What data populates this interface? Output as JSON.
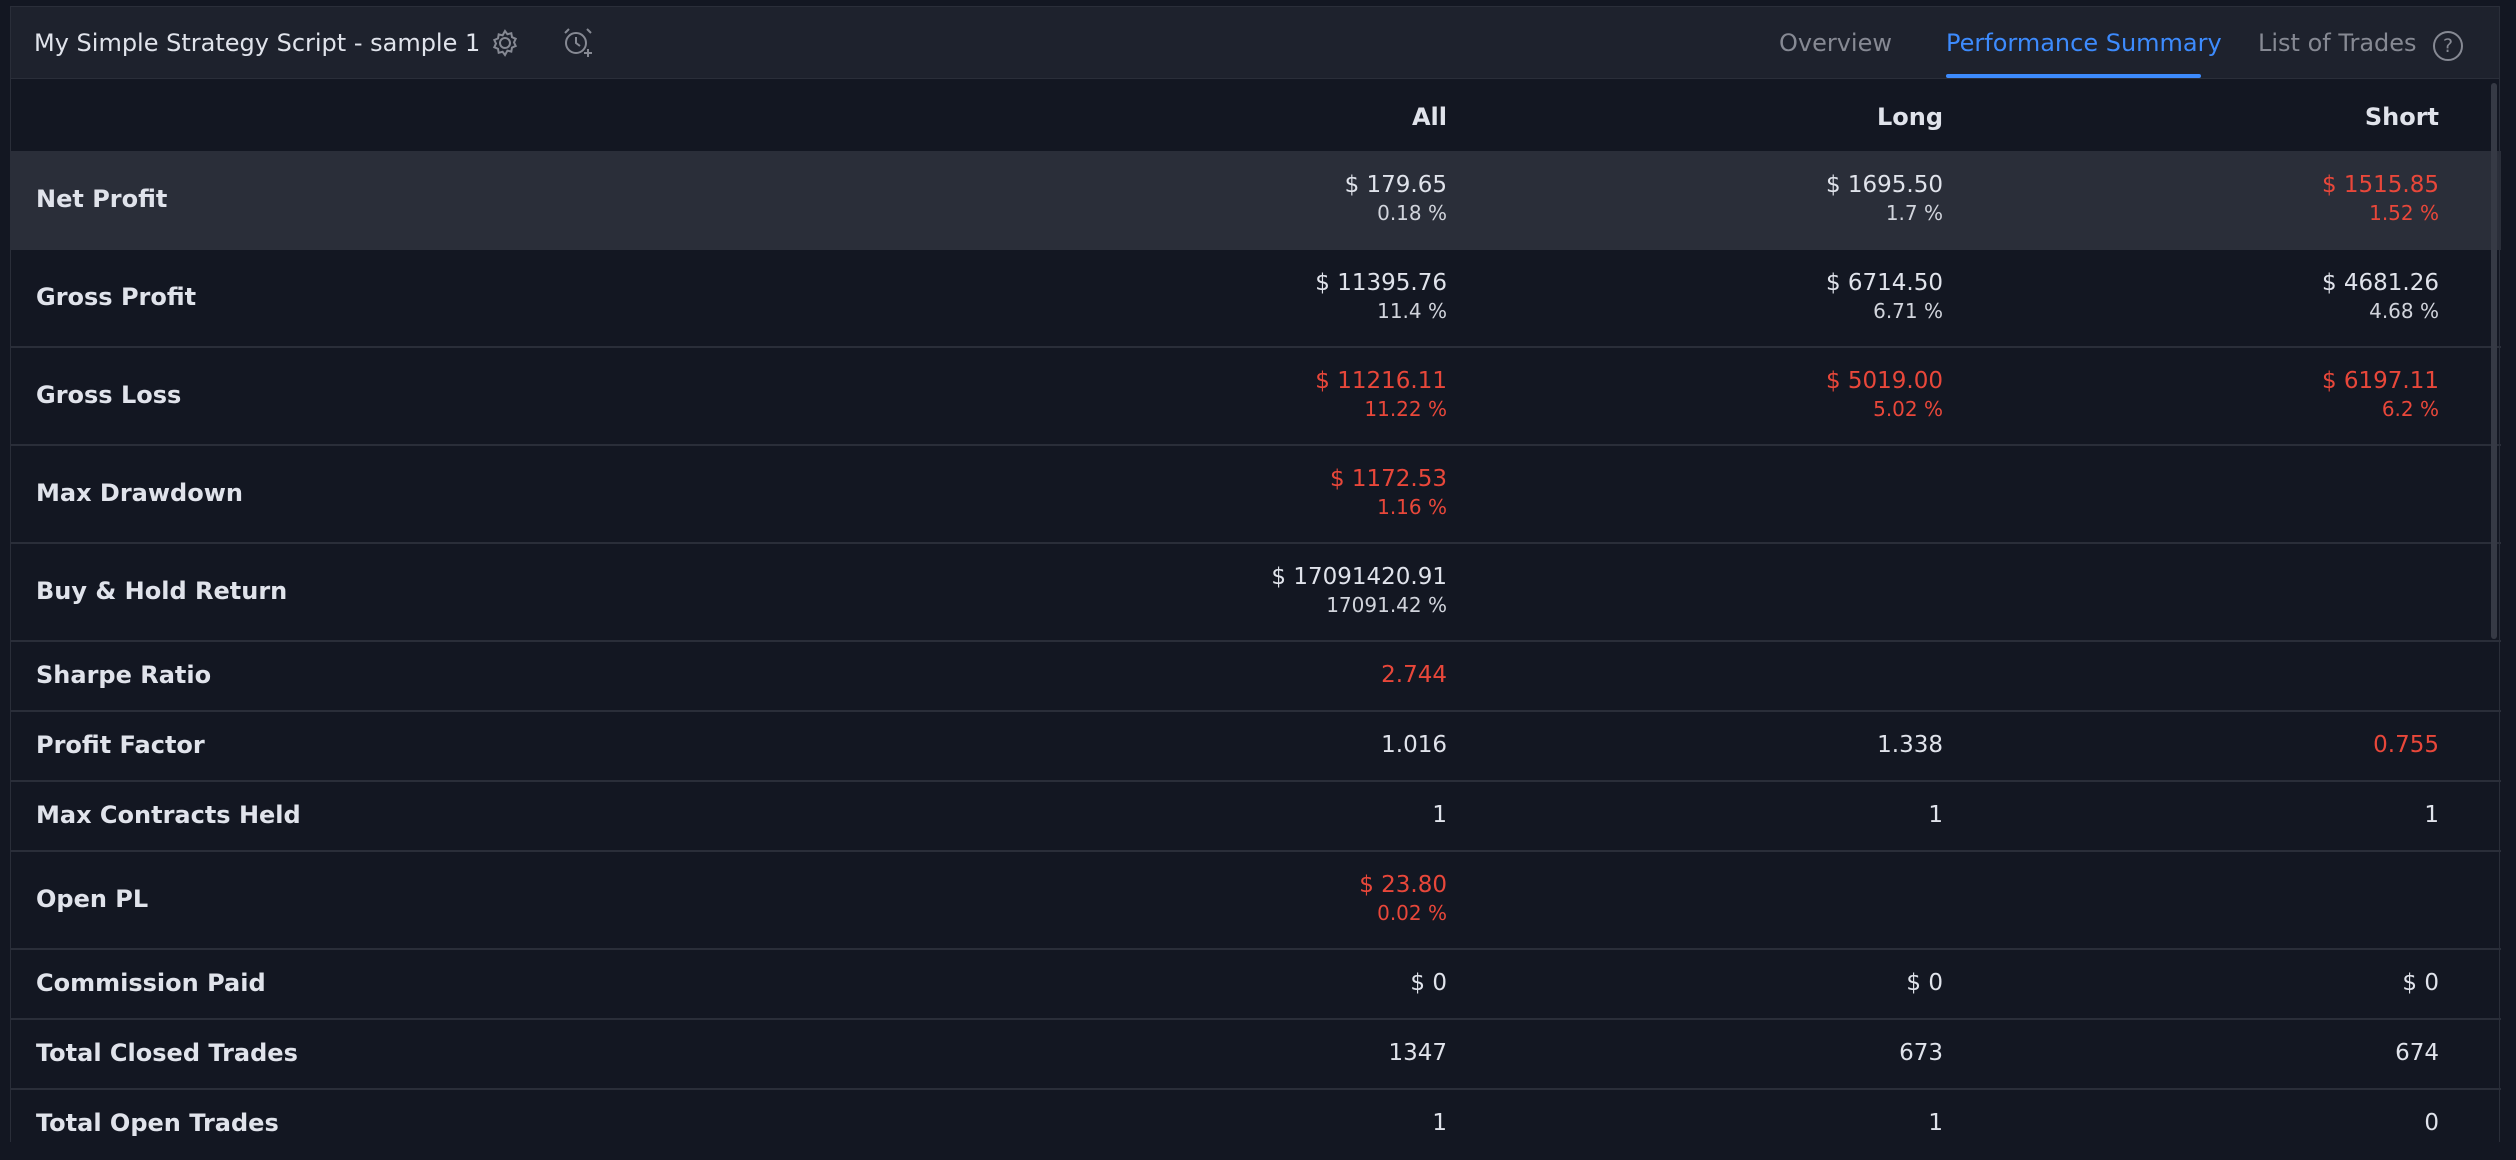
{
  "header": {
    "title": "My Simple Strategy Script - sample 1",
    "tabs": [
      "Overview",
      "Performance Summary",
      "List of Trades"
    ],
    "active_tab": "Performance Summary",
    "help_label": "?"
  },
  "columns": {
    "all": "All",
    "long": "Long",
    "short": "Short"
  },
  "rows": [
    {
      "label": "Net Profit",
      "all": {
        "v1": "$ 179.65",
        "v2": "0.18 %"
      },
      "long": {
        "v1": "$ 1695.50",
        "v2": "1.7 %"
      },
      "short": {
        "v1": "$ 1515.85",
        "v2": "1.52 %"
      }
    },
    {
      "label": "Gross Profit",
      "all": {
        "v1": "$ 11395.76",
        "v2": "11.4 %"
      },
      "long": {
        "v1": "$ 6714.50",
        "v2": "6.71 %"
      },
      "short": {
        "v1": "$ 4681.26",
        "v2": "4.68 %"
      }
    },
    {
      "label": "Gross Loss",
      "all": {
        "v1": "$ 11216.11",
        "v2": "11.22 %"
      },
      "long": {
        "v1": "$ 5019.00",
        "v2": "5.02 %"
      },
      "short": {
        "v1": "$ 6197.11",
        "v2": "6.2 %"
      }
    },
    {
      "label": "Max Drawdown",
      "all": {
        "v1": "$ 1172.53",
        "v2": "1.16 %"
      }
    },
    {
      "label": "Buy & Hold Return",
      "all": {
        "v1": "$ 17091420.91",
        "v2": "17091.42 %"
      }
    },
    {
      "label": "Sharpe Ratio",
      "all": {
        "v1": "2.744"
      }
    },
    {
      "label": "Profit Factor",
      "all": {
        "v1": "1.016"
      },
      "long": {
        "v1": "1.338"
      },
      "short": {
        "v1": "0.755"
      }
    },
    {
      "label": "Max Contracts Held",
      "all": {
        "v1": "1"
      },
      "long": {
        "v1": "1"
      },
      "short": {
        "v1": "1"
      }
    },
    {
      "label": "Open PL",
      "all": {
        "v1": "$ 23.80",
        "v2": "0.02 %"
      }
    },
    {
      "label": "Commission Paid",
      "all": {
        "v1": "$ 0"
      },
      "long": {
        "v1": "$ 0"
      },
      "short": {
        "v1": "$ 0"
      }
    },
    {
      "label": "Total Closed Trades",
      "all": {
        "v1": "1347"
      },
      "long": {
        "v1": "673"
      },
      "short": {
        "v1": "674"
      }
    },
    {
      "label": "Total Open Trades",
      "all": {
        "v1": "1"
      },
      "long": {
        "v1": "1"
      },
      "short": {
        "v1": "0"
      }
    }
  ],
  "colors": {
    "negative": "#e8473a",
    "accent": "#3d8bfd"
  },
  "icons": [
    "gear-icon",
    "alarm-add-icon",
    "help-icon"
  ]
}
